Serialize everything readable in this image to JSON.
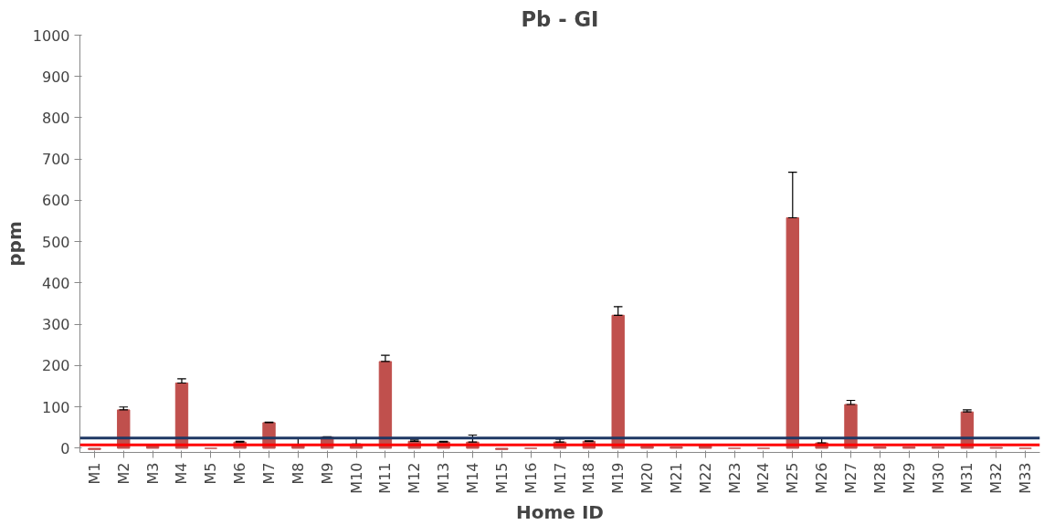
{
  "chart_data": {
    "type": "bar",
    "title": "Pb - GI",
    "xlabel": "Home ID",
    "ylabel": "ppm",
    "categories": [
      "M1",
      "M2",
      "M3",
      "M4",
      "M5",
      "M6",
      "M7",
      "M8",
      "M9",
      "M10",
      "M11",
      "M12",
      "M13",
      "M14",
      "M15",
      "M16",
      "M17",
      "M18",
      "M19",
      "M20",
      "M21",
      "M22",
      "M23",
      "M24",
      "M25",
      "M26",
      "M27",
      "M28",
      "M29",
      "M30",
      "M31",
      "M32",
      "M33"
    ],
    "series": [
      {
        "color": "#c0504d",
        "values": [
          -3,
          93,
          8,
          158,
          0,
          15,
          62,
          8,
          27,
          10,
          210,
          17,
          15,
          15,
          -3,
          0,
          15,
          17,
          322,
          5,
          3,
          8,
          0,
          0,
          558,
          13,
          106,
          3,
          3,
          3,
          88,
          2,
          0
        ],
        "errors": [
          null,
          [
            93,
            100
          ],
          null,
          [
            158,
            168
          ],
          null,
          [
            15,
            17
          ],
          [
            62,
            63
          ],
          [
            8,
            25
          ],
          [
            27,
            28
          ],
          [
            10,
            25
          ],
          [
            210,
            225
          ],
          [
            17,
            20
          ],
          [
            15,
            17
          ],
          [
            15,
            32
          ],
          null,
          null,
          [
            15,
            22
          ],
          [
            17,
            18
          ],
          [
            322,
            343
          ],
          null,
          null,
          null,
          null,
          null,
          [
            558,
            668
          ],
          [
            13,
            25
          ],
          [
            106,
            116
          ],
          null,
          null,
          null,
          [
            88,
            93
          ],
          null,
          null
        ]
      }
    ],
    "ylim": [
      -10,
      1000
    ],
    "yticks": [
      0,
      100,
      200,
      300,
      400,
      500,
      600,
      700,
      800,
      900,
      1000
    ],
    "ref_lines": [
      {
        "axis": "y",
        "value": 25,
        "color": "#1f3864"
      },
      {
        "axis": "y",
        "value": 8,
        "color": "#ff0000"
      }
    ],
    "grid": false
  }
}
